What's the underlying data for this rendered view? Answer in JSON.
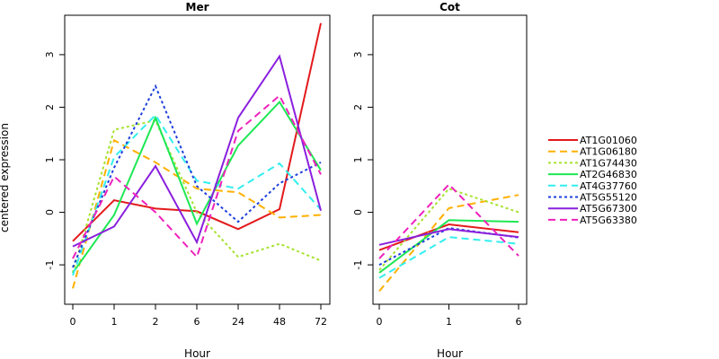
{
  "chart_data": {
    "type": "line",
    "ylabel": "centered expression",
    "ylim": [
      -1.75,
      3.75
    ],
    "yticks": [
      -1,
      0,
      1,
      2,
      3
    ],
    "grid": false,
    "legend_position": "right",
    "series_styles": [
      {
        "name": "AT1G01060",
        "color": "#e31a1c",
        "dash": "solid"
      },
      {
        "name": "AT1G06180",
        "color": "#ffb000",
        "dash": "dashed"
      },
      {
        "name": "AT1G74430",
        "color": "#a6e22e",
        "dash": "dotted"
      },
      {
        "name": "AT2G46830",
        "color": "#1ee854",
        "dash": "solid"
      },
      {
        "name": "AT4G37760",
        "color": "#33eeee",
        "dash": "dashed"
      },
      {
        "name": "AT5G55120",
        "color": "#1f3fdd",
        "dash": "dotted"
      },
      {
        "name": "AT5G67300",
        "color": "#8a1fdd",
        "dash": "solid"
      },
      {
        "name": "AT5G63380",
        "color": "#ee22bb",
        "dash": "dashed"
      }
    ],
    "panels": [
      {
        "title": "Mer",
        "xlabel": "Hour",
        "categories": [
          "0",
          "1",
          "2",
          "6",
          "24",
          "48",
          "72"
        ],
        "series": [
          {
            "name": "AT1G01060",
            "values": [
              -0.55,
              0.23,
              0.07,
              0.02,
              -0.32,
              0.06,
              3.6
            ]
          },
          {
            "name": "AT1G06180",
            "values": [
              -1.45,
              1.37,
              0.95,
              0.45,
              0.38,
              -0.1,
              -0.05
            ]
          },
          {
            "name": "AT1G74430",
            "values": [
              -1.15,
              1.57,
              1.75,
              0.0,
              -0.85,
              -0.6,
              -0.92
            ]
          },
          {
            "name": "AT2G46830",
            "values": [
              -1.15,
              -0.05,
              1.8,
              -0.22,
              1.27,
              2.1,
              0.8
            ]
          },
          {
            "name": "AT4G37760",
            "values": [
              -1.2,
              1.05,
              1.85,
              0.6,
              0.45,
              0.93,
              0.05
            ]
          },
          {
            "name": "AT5G55120",
            "values": [
              -1.05,
              0.85,
              2.4,
              0.5,
              -0.18,
              0.55,
              0.95
            ]
          },
          {
            "name": "AT5G67300",
            "values": [
              -0.65,
              -0.27,
              0.88,
              -0.57,
              1.8,
              2.97,
              0.03
            ]
          },
          {
            "name": "AT5G63380",
            "values": [
              -0.88,
              0.68,
              0.0,
              -0.85,
              1.55,
              2.22,
              0.72
            ]
          }
        ]
      },
      {
        "title": "Cot",
        "xlabel": "Hour",
        "categories": [
          "0",
          "1",
          "6"
        ],
        "series": [
          {
            "name": "AT1G01060",
            "values": [
              -0.72,
              -0.23,
              -0.38
            ]
          },
          {
            "name": "AT1G06180",
            "values": [
              -1.5,
              0.08,
              0.33
            ]
          },
          {
            "name": "AT1G74430",
            "values": [
              -1.1,
              0.45,
              0.0
            ]
          },
          {
            "name": "AT2G46830",
            "values": [
              -1.15,
              -0.15,
              -0.18
            ]
          },
          {
            "name": "AT4G37760",
            "values": [
              -1.25,
              -0.47,
              -0.6
            ]
          },
          {
            "name": "AT5G55120",
            "values": [
              -1.0,
              -0.3,
              -0.48
            ]
          },
          {
            "name": "AT5G67300",
            "values": [
              -0.62,
              -0.32,
              -0.47
            ]
          },
          {
            "name": "AT5G63380",
            "values": [
              -0.88,
              0.53,
              -0.83
            ]
          }
        ]
      }
    ]
  }
}
